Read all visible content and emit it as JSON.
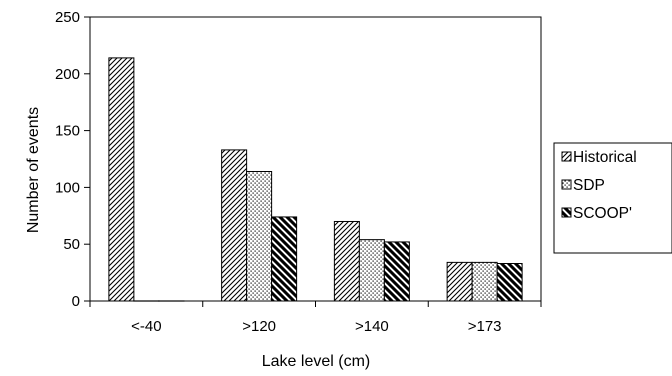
{
  "chart_data": {
    "type": "bar",
    "title": "",
    "xlabel": "Lake level (cm)",
    "ylabel": "Number of events",
    "categories": [
      "<-40",
      ">120",
      ">140",
      ">173"
    ],
    "ylim": [
      0,
      250
    ],
    "yticks": [
      0,
      50,
      100,
      150,
      200,
      250
    ],
    "grid": false,
    "legend_position": "right",
    "series": [
      {
        "name": "Historical",
        "pattern": "diagonal-forward",
        "values": [
          214,
          133,
          70,
          34
        ]
      },
      {
        "name": "SDP",
        "pattern": "dots",
        "values": [
          0,
          114,
          54,
          34
        ]
      },
      {
        "name": "SCOOP",
        "pattern": "diagonal-backward-heavy",
        "values": [
          0,
          74,
          52,
          33
        ]
      }
    ],
    "legend_labels": [
      "Historical",
      "SDP",
      "SCOOP'"
    ]
  }
}
